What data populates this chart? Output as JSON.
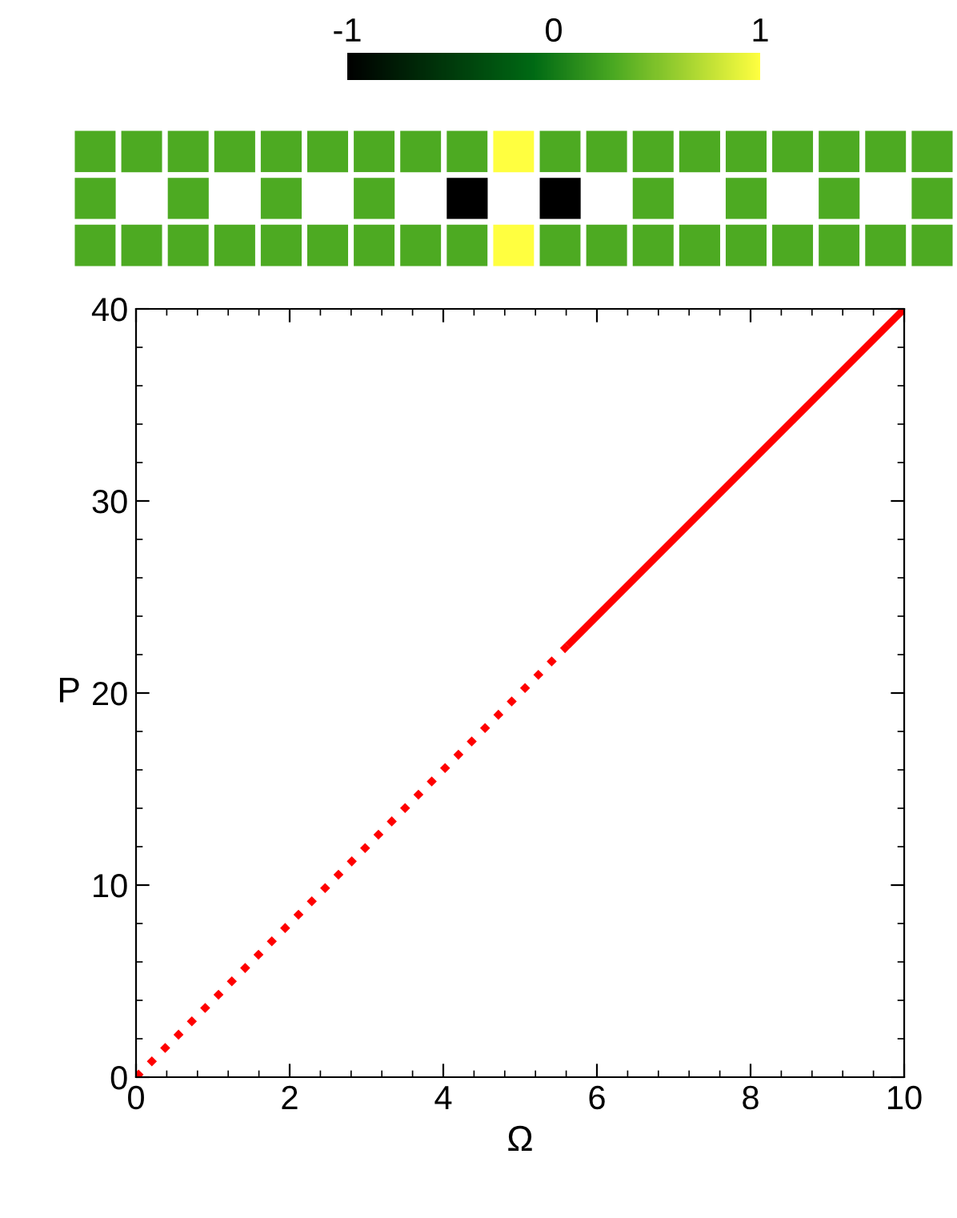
{
  "chart_data": [
    {
      "type": "heatmap",
      "clim": [
        -1,
        1
      ],
      "cticks": [
        -1,
        0,
        1
      ],
      "categories": [
        null,
        null,
        null,
        null,
        null,
        null,
        null,
        null,
        null,
        null,
        null,
        null,
        null,
        null,
        null,
        null,
        null,
        null,
        null
      ],
      "y_categories": [
        null,
        null,
        null
      ],
      "cells": [
        [
          0.3,
          0.3,
          0.3,
          0.3,
          0.3,
          0.3,
          0.3,
          0.3,
          0.3,
          1,
          0.3,
          0.3,
          0.3,
          0.3,
          0.3,
          0.3,
          0.3,
          0.3,
          0.3
        ],
        [
          0.3,
          null,
          0.3,
          null,
          0.3,
          null,
          0.3,
          null,
          -1,
          null,
          -1,
          null,
          0.3,
          null,
          0.3,
          null,
          0.3,
          null,
          0.3
        ],
        [
          0.3,
          0.3,
          0.3,
          0.3,
          0.3,
          0.3,
          0.3,
          0.3,
          0.3,
          1,
          0.3,
          0.3,
          0.3,
          0.3,
          0.3,
          0.3,
          0.3,
          0.3,
          0.3
        ]
      ]
    },
    {
      "type": "line",
      "xlabel": "Ω",
      "ylabel": "P",
      "xlim": [
        0,
        10
      ],
      "ylim": [
        0,
        40
      ],
      "xticks": [
        0,
        2,
        4,
        6,
        8,
        10
      ],
      "yticks": [
        0,
        10,
        20,
        30,
        40
      ],
      "grid": false,
      "legend": false,
      "series": [
        {
          "color": "#ff0000",
          "line_style": "dotted",
          "x": [
            0,
            5.65
          ],
          "values": [
            0,
            22.6
          ]
        },
        {
          "color": "#ff0000",
          "line_style": "solid",
          "x": [
            5.65,
            10
          ],
          "values": [
            22.6,
            40
          ]
        }
      ]
    }
  ]
}
